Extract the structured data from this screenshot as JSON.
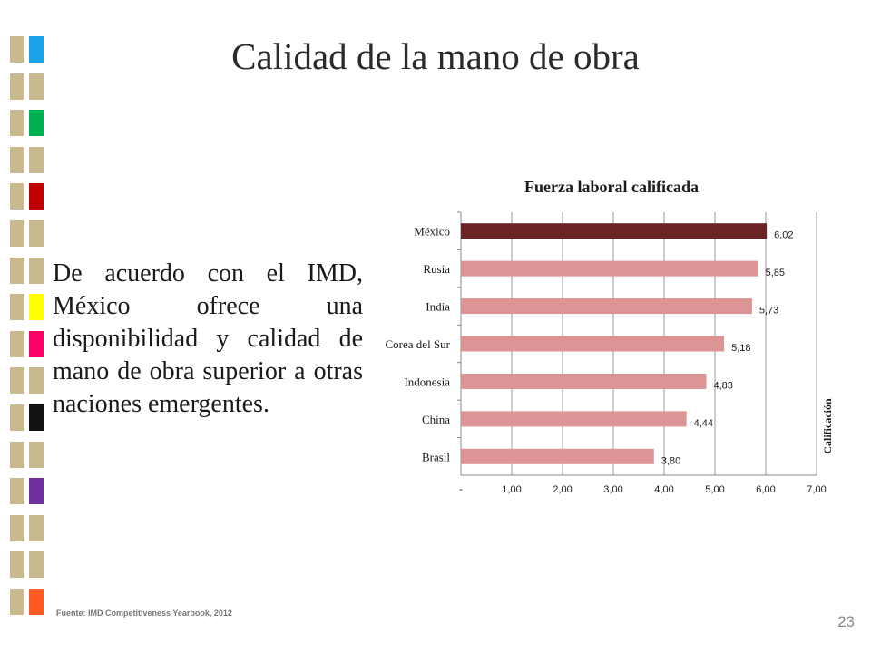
{
  "slide": {
    "title": "Calidad de la mano de obra",
    "body": "De acuerdo con el IMD, México ofrece una disponibilidad y calidad de mano de obra superior a otras naciones emergentes.",
    "source": "Fuente: IMD Competitiveness Yearbook, 2012",
    "page_number": "23"
  },
  "decoration": {
    "squares_left_color": "#c8b98f",
    "squares_right_colors": [
      "#1aa3e8",
      "#c8b98f",
      "#00b050",
      "#c8b98f",
      "#c00000",
      "#c8b98f",
      "#c8b98f",
      "#ffff00",
      "#ff0066",
      "#c8b98f",
      "#111111",
      "#c8b98f",
      "#7030a0",
      "#c8b98f",
      "#c8b98f",
      "#ff5a1f"
    ]
  },
  "chart_data": {
    "type": "bar",
    "orientation": "horizontal",
    "title": "Fuerza laboral calificada",
    "xlabel": "",
    "ylabel": "Calificación",
    "categories": [
      "México",
      "Rusia",
      "India",
      "Corea del Sur",
      "Indonesia",
      "China",
      "Brasil"
    ],
    "values": [
      6.02,
      5.85,
      5.73,
      5.18,
      4.83,
      4.44,
      3.8
    ],
    "value_labels": [
      "6,02",
      "5,85",
      "5,73",
      "5,18",
      "4,83",
      "4,44",
      "3,80"
    ],
    "xlim": [
      0,
      7
    ],
    "x_ticks": [
      "-",
      "1,00",
      "2,00",
      "3,00",
      "4,00",
      "5,00",
      "6,00",
      "7,00"
    ],
    "gridlines": true,
    "highlight_color": "#6b2424",
    "bar_color": "#dc9594"
  }
}
